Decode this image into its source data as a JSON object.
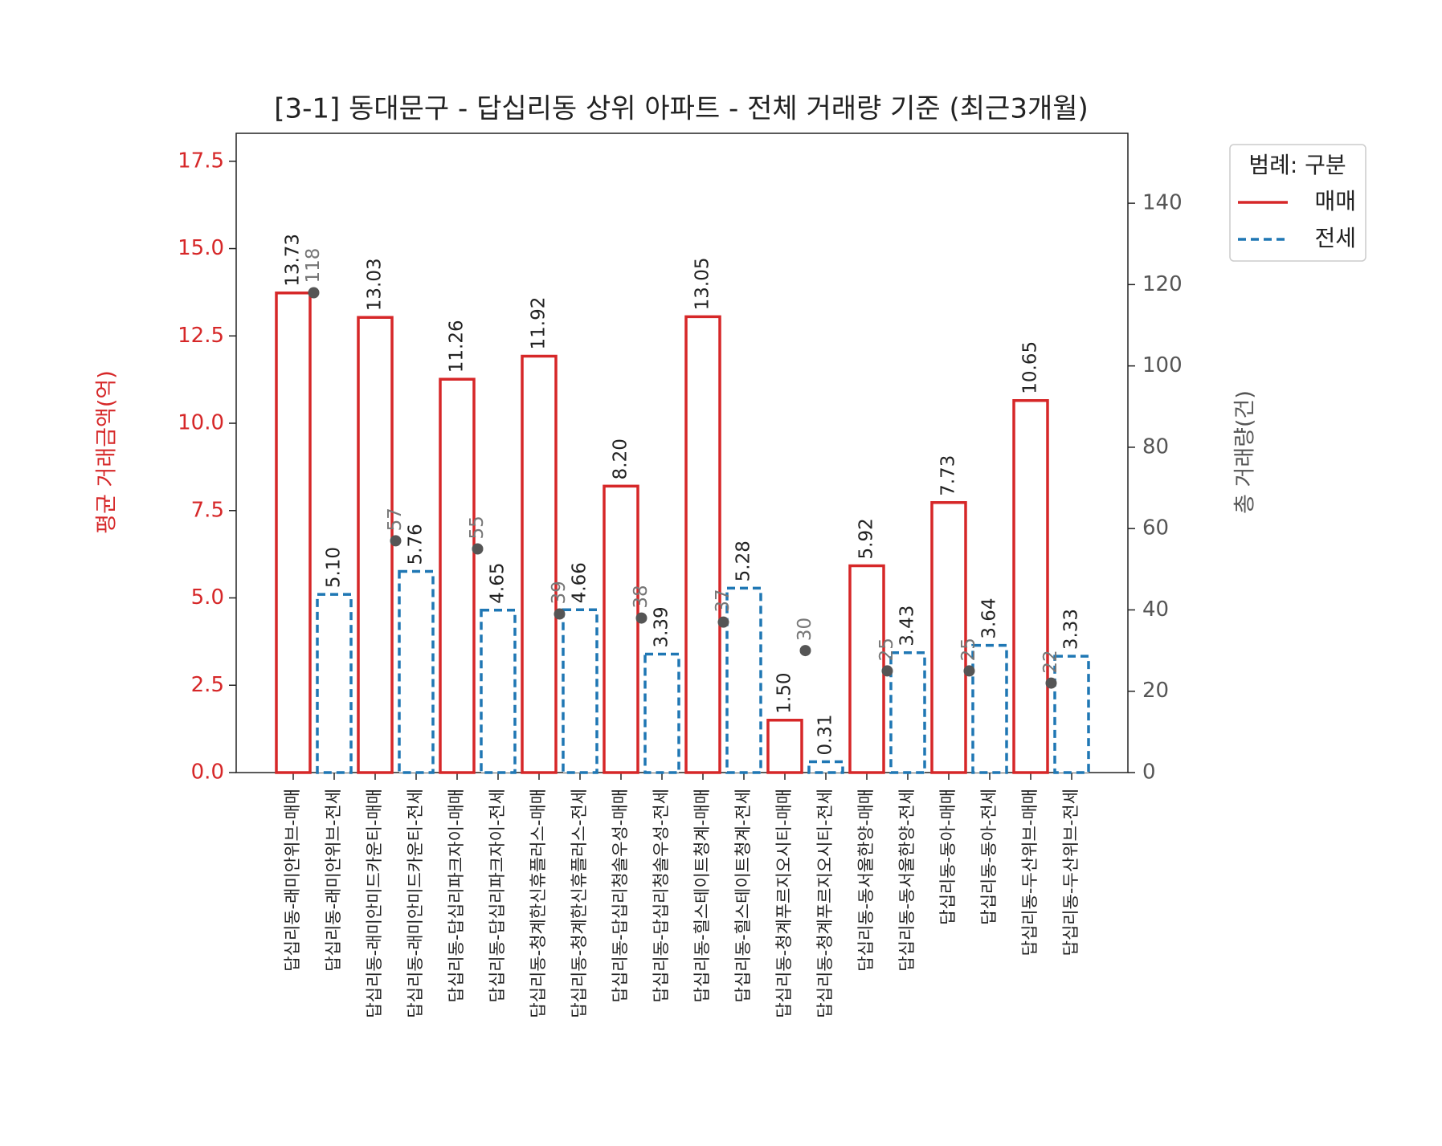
{
  "chart_data": {
    "type": "bar",
    "title": "[3-1] 동대문구 - 답십리동 상위 아파트 - 전체 거래량 기준 (최근3개월)",
    "y_label": "평균 거래금액(억)",
    "y2_label": "총 거래량(건)",
    "legend_title": "범례: 구분",
    "legend": "upper right outside",
    "categories": [
      "답십리동-래미안위브-매매",
      "답십리동-래미안위브-전세",
      "답십리동-래미안미드카운티-매매",
      "답십리동-래미안미드카운티-전세",
      "답십리동-답십리파크자이-매매",
      "답십리동-답십리파크자이-전세",
      "답십리동-청계한신휴플러스-매매",
      "답십리동-청계한신휴플러스-전세",
      "답십리동-답십리청솔우성-매매",
      "답십리동-답십리청솔우성-전세",
      "답십리동-힐스테이트청계-매매",
      "답십리동-힐스테이트청계-전세",
      "답십리동-청계푸르지오시티-매매",
      "답십리동-청계푸르지오시티-전세",
      "답십리동-동서울한양-매매",
      "답십리동-동서울한양-전세",
      "답십리동-동아-매매",
      "답십리동-동아-전세",
      "답십리동-두산위브-매매",
      "답십리동-두산위브-전세"
    ],
    "series": [
      {
        "name": "매매",
        "color": "#d62728",
        "dash": "solid",
        "values": [
          13.73,
          null,
          13.03,
          null,
          11.26,
          null,
          11.92,
          null,
          8.2,
          null,
          13.05,
          null,
          1.5,
          null,
          5.92,
          null,
          7.73,
          null,
          10.65,
          null
        ],
        "value_labels": [
          "13.73",
          null,
          "13.03",
          null,
          "11.26",
          null,
          "11.92",
          null,
          "8.20",
          null,
          "13.05",
          null,
          "1.50",
          null,
          "5.92",
          null,
          "7.73",
          null,
          "10.65",
          null
        ]
      },
      {
        "name": "전세",
        "color": "#1f77b4",
        "dash": "dashed",
        "values": [
          null,
          5.1,
          null,
          5.76,
          null,
          4.65,
          null,
          4.66,
          null,
          3.39,
          null,
          5.28,
          null,
          0.31,
          null,
          3.43,
          null,
          3.64,
          null,
          3.33
        ],
        "value_labels": [
          null,
          "5.10",
          null,
          "5.76",
          null,
          "4.65",
          null,
          "4.66",
          null,
          "3.39",
          null,
          "5.28",
          null,
          "0.31",
          null,
          "3.43",
          null,
          "3.64",
          null,
          "3.33"
        ]
      },
      {
        "type": "scatter",
        "axis": "y2",
        "color": "#555555",
        "values": [
          118,
          null,
          57,
          null,
          55,
          null,
          39,
          null,
          38,
          null,
          37,
          null,
          30,
          null,
          25,
          null,
          25,
          null,
          22,
          null
        ]
      }
    ],
    "ylim": [
      0,
      18.3
    ],
    "yticks": [
      {
        "value": 0,
        "label": "0.0"
      },
      {
        "value": 2.5,
        "label": "2.5"
      },
      {
        "value": 5,
        "label": "5.0"
      },
      {
        "value": 7.5,
        "label": "7.5"
      },
      {
        "value": 10,
        "label": "10.0"
      },
      {
        "value": 12.5,
        "label": "12.5"
      },
      {
        "value": 15,
        "label": "15.0"
      },
      {
        "value": 17.5,
        "label": "17.5"
      }
    ],
    "y2lim": [
      0,
      157.2
    ],
    "y2ticks": [
      0,
      20,
      40,
      60,
      80,
      100,
      120,
      140
    ],
    "grid": false
  }
}
